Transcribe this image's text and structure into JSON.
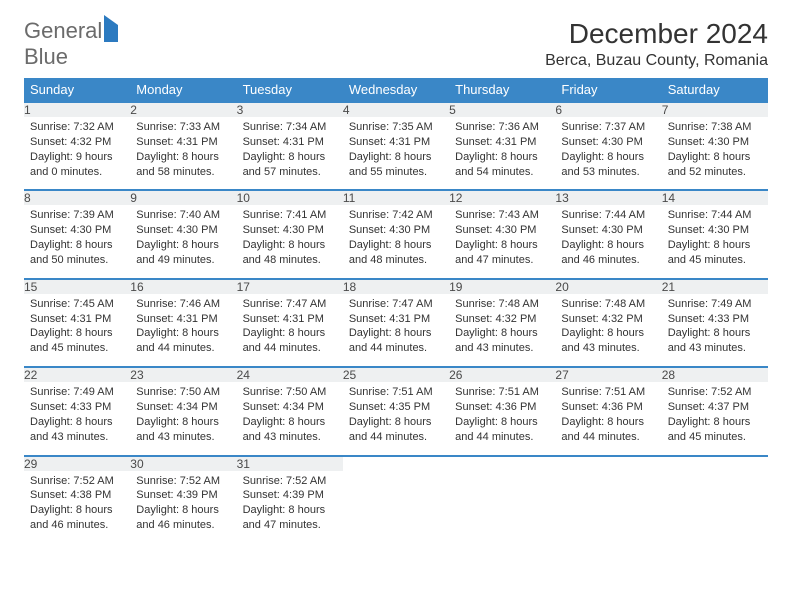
{
  "logo": {
    "text_gray": "General",
    "text_blue": "Blue"
  },
  "header": {
    "month_title": "December 2024",
    "location": "Berca, Buzau County, Romania"
  },
  "colors": {
    "header_bg": "#3a87c7",
    "header_text": "#ffffff",
    "daynum_bg": "#eef0f1",
    "row_border": "#3a87c7",
    "logo_gray": "#6b6b6b",
    "logo_blue": "#2c7ac0",
    "body_text": "#333333"
  },
  "typography": {
    "month_title_fontsize": 28,
    "location_fontsize": 16,
    "dayheader_fontsize": 13,
    "daynum_fontsize": 12,
    "cell_fontsize": 11
  },
  "day_headers": [
    "Sunday",
    "Monday",
    "Tuesday",
    "Wednesday",
    "Thursday",
    "Friday",
    "Saturday"
  ],
  "weeks": [
    [
      {
        "n": "1",
        "sr": "Sunrise: 7:32 AM",
        "ss": "Sunset: 4:32 PM",
        "dl": "Daylight: 9 hours and 0 minutes."
      },
      {
        "n": "2",
        "sr": "Sunrise: 7:33 AM",
        "ss": "Sunset: 4:31 PM",
        "dl": "Daylight: 8 hours and 58 minutes."
      },
      {
        "n": "3",
        "sr": "Sunrise: 7:34 AM",
        "ss": "Sunset: 4:31 PM",
        "dl": "Daylight: 8 hours and 57 minutes."
      },
      {
        "n": "4",
        "sr": "Sunrise: 7:35 AM",
        "ss": "Sunset: 4:31 PM",
        "dl": "Daylight: 8 hours and 55 minutes."
      },
      {
        "n": "5",
        "sr": "Sunrise: 7:36 AM",
        "ss": "Sunset: 4:31 PM",
        "dl": "Daylight: 8 hours and 54 minutes."
      },
      {
        "n": "6",
        "sr": "Sunrise: 7:37 AM",
        "ss": "Sunset: 4:30 PM",
        "dl": "Daylight: 8 hours and 53 minutes."
      },
      {
        "n": "7",
        "sr": "Sunrise: 7:38 AM",
        "ss": "Sunset: 4:30 PM",
        "dl": "Daylight: 8 hours and 52 minutes."
      }
    ],
    [
      {
        "n": "8",
        "sr": "Sunrise: 7:39 AM",
        "ss": "Sunset: 4:30 PM",
        "dl": "Daylight: 8 hours and 50 minutes."
      },
      {
        "n": "9",
        "sr": "Sunrise: 7:40 AM",
        "ss": "Sunset: 4:30 PM",
        "dl": "Daylight: 8 hours and 49 minutes."
      },
      {
        "n": "10",
        "sr": "Sunrise: 7:41 AM",
        "ss": "Sunset: 4:30 PM",
        "dl": "Daylight: 8 hours and 48 minutes."
      },
      {
        "n": "11",
        "sr": "Sunrise: 7:42 AM",
        "ss": "Sunset: 4:30 PM",
        "dl": "Daylight: 8 hours and 48 minutes."
      },
      {
        "n": "12",
        "sr": "Sunrise: 7:43 AM",
        "ss": "Sunset: 4:30 PM",
        "dl": "Daylight: 8 hours and 47 minutes."
      },
      {
        "n": "13",
        "sr": "Sunrise: 7:44 AM",
        "ss": "Sunset: 4:30 PM",
        "dl": "Daylight: 8 hours and 46 minutes."
      },
      {
        "n": "14",
        "sr": "Sunrise: 7:44 AM",
        "ss": "Sunset: 4:30 PM",
        "dl": "Daylight: 8 hours and 45 minutes."
      }
    ],
    [
      {
        "n": "15",
        "sr": "Sunrise: 7:45 AM",
        "ss": "Sunset: 4:31 PM",
        "dl": "Daylight: 8 hours and 45 minutes."
      },
      {
        "n": "16",
        "sr": "Sunrise: 7:46 AM",
        "ss": "Sunset: 4:31 PM",
        "dl": "Daylight: 8 hours and 44 minutes."
      },
      {
        "n": "17",
        "sr": "Sunrise: 7:47 AM",
        "ss": "Sunset: 4:31 PM",
        "dl": "Daylight: 8 hours and 44 minutes."
      },
      {
        "n": "18",
        "sr": "Sunrise: 7:47 AM",
        "ss": "Sunset: 4:31 PM",
        "dl": "Daylight: 8 hours and 44 minutes."
      },
      {
        "n": "19",
        "sr": "Sunrise: 7:48 AM",
        "ss": "Sunset: 4:32 PM",
        "dl": "Daylight: 8 hours and 43 minutes."
      },
      {
        "n": "20",
        "sr": "Sunrise: 7:48 AM",
        "ss": "Sunset: 4:32 PM",
        "dl": "Daylight: 8 hours and 43 minutes."
      },
      {
        "n": "21",
        "sr": "Sunrise: 7:49 AM",
        "ss": "Sunset: 4:33 PM",
        "dl": "Daylight: 8 hours and 43 minutes."
      }
    ],
    [
      {
        "n": "22",
        "sr": "Sunrise: 7:49 AM",
        "ss": "Sunset: 4:33 PM",
        "dl": "Daylight: 8 hours and 43 minutes."
      },
      {
        "n": "23",
        "sr": "Sunrise: 7:50 AM",
        "ss": "Sunset: 4:34 PM",
        "dl": "Daylight: 8 hours and 43 minutes."
      },
      {
        "n": "24",
        "sr": "Sunrise: 7:50 AM",
        "ss": "Sunset: 4:34 PM",
        "dl": "Daylight: 8 hours and 43 minutes."
      },
      {
        "n": "25",
        "sr": "Sunrise: 7:51 AM",
        "ss": "Sunset: 4:35 PM",
        "dl": "Daylight: 8 hours and 44 minutes."
      },
      {
        "n": "26",
        "sr": "Sunrise: 7:51 AM",
        "ss": "Sunset: 4:36 PM",
        "dl": "Daylight: 8 hours and 44 minutes."
      },
      {
        "n": "27",
        "sr": "Sunrise: 7:51 AM",
        "ss": "Sunset: 4:36 PM",
        "dl": "Daylight: 8 hours and 44 minutes."
      },
      {
        "n": "28",
        "sr": "Sunrise: 7:52 AM",
        "ss": "Sunset: 4:37 PM",
        "dl": "Daylight: 8 hours and 45 minutes."
      }
    ],
    [
      {
        "n": "29",
        "sr": "Sunrise: 7:52 AM",
        "ss": "Sunset: 4:38 PM",
        "dl": "Daylight: 8 hours and 46 minutes."
      },
      {
        "n": "30",
        "sr": "Sunrise: 7:52 AM",
        "ss": "Sunset: 4:39 PM",
        "dl": "Daylight: 8 hours and 46 minutes."
      },
      {
        "n": "31",
        "sr": "Sunrise: 7:52 AM",
        "ss": "Sunset: 4:39 PM",
        "dl": "Daylight: 8 hours and 47 minutes."
      },
      null,
      null,
      null,
      null
    ]
  ]
}
